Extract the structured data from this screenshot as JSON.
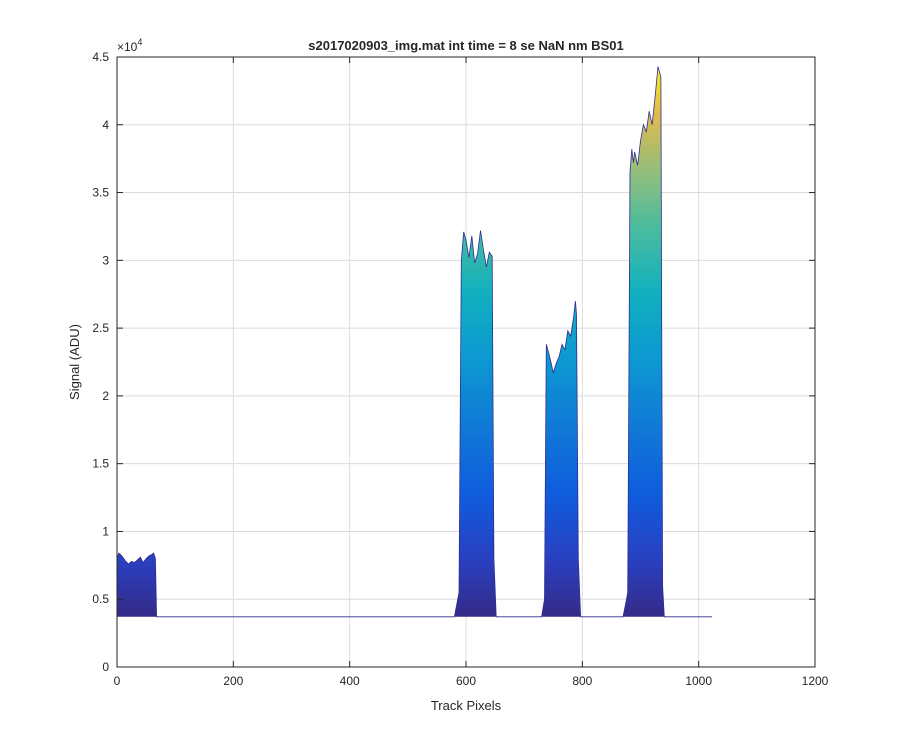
{
  "chart_data": {
    "type": "area",
    "title": "s2017020903_img.mat int time = 8 se  NaN nm BS01",
    "xlabel": "Track Pixels",
    "ylabel": "Signal (ADU)",
    "y_exponent_label": "×10",
    "y_exponent_power": "4",
    "xlim": [
      0,
      1200
    ],
    "ylim": [
      0,
      45000
    ],
    "x_ticks": [
      0,
      200,
      400,
      600,
      800,
      1000,
      1200
    ],
    "x_tick_labels": [
      "0",
      "200",
      "400",
      "600",
      "800",
      "1000",
      "1200"
    ],
    "y_ticks": [
      0,
      5000,
      10000,
      15000,
      20000,
      25000,
      30000,
      35000,
      40000,
      45000
    ],
    "y_tick_labels": [
      "0",
      "0.5",
      "1",
      "1.5",
      "2",
      "2.5",
      "3",
      "3.5",
      "4",
      "4.5"
    ],
    "grid": true,
    "colormap": "parula",
    "baseline": 3700,
    "x": [
      0,
      3,
      8,
      15,
      20,
      25,
      30,
      35,
      40,
      45,
      50,
      55,
      60,
      63,
      66,
      68,
      100,
      200,
      300,
      400,
      500,
      580,
      588,
      592,
      596,
      600,
      605,
      610,
      615,
      620,
      625,
      630,
      635,
      640,
      645,
      648,
      652,
      700,
      730,
      735,
      738,
      742,
      746,
      750,
      755,
      760,
      765,
      770,
      775,
      780,
      785,
      788,
      790,
      793,
      797,
      850,
      870,
      875,
      878,
      882,
      885,
      888,
      890,
      895,
      900,
      905,
      910,
      915,
      920,
      925,
      930,
      935,
      938,
      941,
      1000,
      1023
    ],
    "y": [
      8000,
      8400,
      8200,
      7800,
      7600,
      7800,
      7700,
      7900,
      8100,
      7700,
      8000,
      8200,
      8300,
      8400,
      8000,
      3700,
      3700,
      3700,
      3700,
      3700,
      3700,
      3700,
      5500,
      30000,
      32100,
      31500,
      30200,
      31800,
      29800,
      30500,
      32200,
      30800,
      29500,
      30600,
      30300,
      8000,
      3700,
      3700,
      3700,
      5000,
      23800,
      23200,
      22500,
      21700,
      22400,
      22900,
      23800,
      23400,
      24800,
      24400,
      25800,
      27000,
      26000,
      8000,
      3700,
      3700,
      3700,
      4800,
      5500,
      36500,
      38200,
      37200,
      38000,
      37000,
      38800,
      40000,
      39500,
      41000,
      40000,
      42000,
      44300,
      43500,
      6000,
      3700,
      3700,
      3700
    ]
  }
}
